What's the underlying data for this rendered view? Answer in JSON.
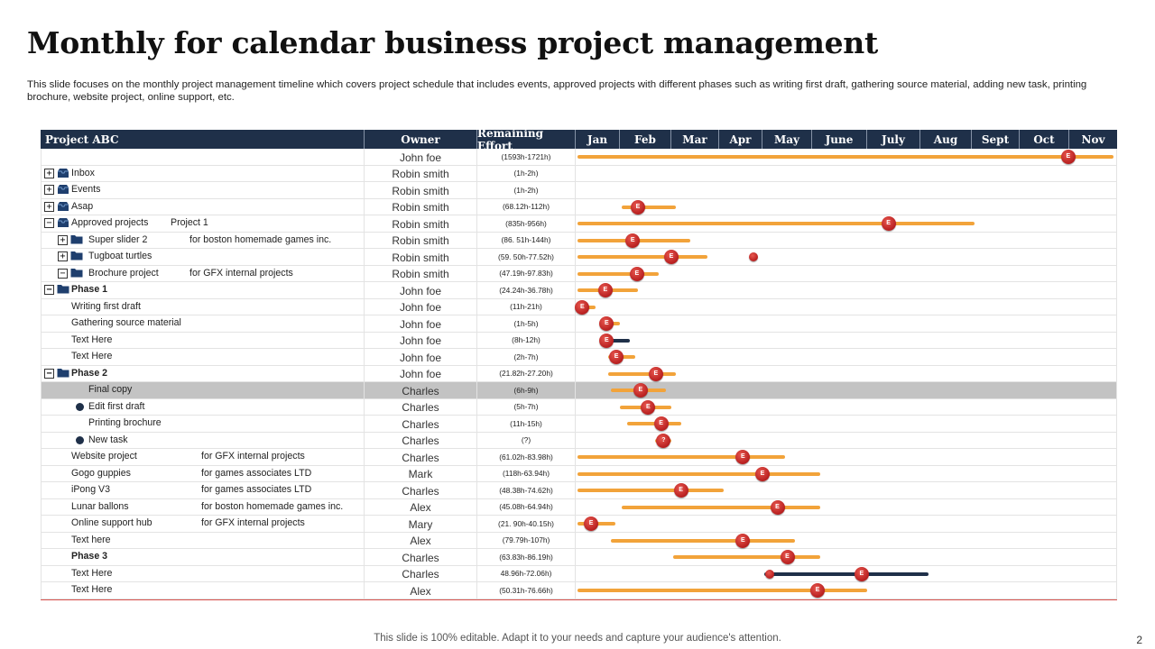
{
  "title": "Monthly for calendar business project management",
  "subtitle": "This slide focuses on the monthly project management timeline which covers project schedule that includes events, approved projects with different phases such as writing first draft, gathering source material, adding new task, printing brochure, website project, online support, etc.",
  "table": {
    "headers": {
      "project": "Project ABC",
      "owner": "Owner",
      "effort": "Remaining Effort"
    },
    "months": [
      "Jan",
      "Feb",
      "Mar",
      "Apr",
      "May",
      "June",
      "July",
      "Aug",
      "Sept",
      "Oct",
      "Nov"
    ],
    "rows": [
      {
        "name": "",
        "note": "",
        "owner": "John foe",
        "effort": "(1593h-1721h)",
        "bold": false,
        "bar": [
          0.0,
          11.0
        ],
        "marker": 9.98,
        "marker_label": "E"
      },
      {
        "name": "Inbox",
        "note": "",
        "owner": "Robin smith",
        "effort": "(1h-2h)",
        "bold": false,
        "expander": "+",
        "icon": "inbox"
      },
      {
        "name": "Events",
        "note": "",
        "owner": "Robin smith",
        "effort": "(1h-2h)",
        "bold": false,
        "expander": "+",
        "icon": "inbox"
      },
      {
        "name": "Asap",
        "note": "",
        "owner": "Robin smith",
        "effort": "(68.12h-112h)",
        "bold": false,
        "expander": "+",
        "icon": "inbox",
        "bar": [
          1.0,
          2.1
        ],
        "marker": 1.35,
        "marker_label": "E"
      },
      {
        "name": "Approved projects",
        "note": "Project  1",
        "owner": "Robin smith",
        "effort": "(835h-956h)",
        "bold": false,
        "expander": "−",
        "icon": "inbox",
        "bar": [
          0.0,
          8.05
        ],
        "marker": 6.4,
        "marker_label": "E"
      },
      {
        "name": "Super slider 2",
        "note": "for boston homemade  games inc.",
        "owner": "Robin smith",
        "effort": "(86. 51h-144h)",
        "bold": false,
        "expander": "+",
        "icon": "folder",
        "bar": [
          0.0,
          2.4
        ],
        "marker": 1.25,
        "marker_label": "E"
      },
      {
        "name": "Tugboat turtles",
        "note": "",
        "owner": "Robin smith",
        "effort": "(59. 50h-77.52h)",
        "bold": false,
        "expander": "+",
        "icon": "folder",
        "bar": [
          0.0,
          2.75
        ],
        "marker": 2.0,
        "marker_label": "E",
        "extra_dot": 3.8
      },
      {
        "name": "Brochure project",
        "note": "for GFX internal projects",
        "owner": "Robin smith",
        "effort": "(47.19h-97.83h)",
        "bold": false,
        "expander": "−",
        "icon": "folder",
        "bar": [
          0.0,
          1.75
        ],
        "marker": 1.33,
        "marker_label": "E"
      },
      {
        "name": "Phase 1",
        "note": "",
        "owner": "John foe",
        "effort": "(24.24h-36.78h)",
        "bold": true,
        "expander": "−",
        "icon": "folder",
        "bar": [
          0.0,
          1.35
        ],
        "marker": 0.67,
        "marker_label": "E"
      },
      {
        "name": "Writing first draft",
        "note": "",
        "owner": "John foe",
        "effort": "(11h-21h)",
        "bold": false,
        "bar": [
          0.0,
          0.45
        ],
        "marker": 0.15,
        "marker_label": "E"
      },
      {
        "name": "Gathering source material",
        "note": "",
        "owner": "John foe",
        "effort": "(1h-5h)",
        "bold": false,
        "bar": [
          0.55,
          1.0
        ],
        "marker": 0.7,
        "marker_label": "E"
      },
      {
        "name": "Text Here",
        "note": "",
        "owner": "John foe",
        "effort": "(8h-12h)",
        "bold": false,
        "bar": [
          0.5,
          1.2
        ],
        "bar_dark": true,
        "marker": 0.7,
        "marker_label": "E"
      },
      {
        "name": "Text Here",
        "note": "",
        "owner": "John foe",
        "effort": "(2h-7h)",
        "bold": false,
        "bar": [
          0.7,
          1.3
        ],
        "marker": 0.92,
        "marker_label": "E"
      },
      {
        "name": "Phase 2",
        "note": "",
        "owner": "John foe",
        "effort": "(21.82h-27.20h)",
        "bold": true,
        "expander": "−",
        "icon": "folder",
        "bar": [
          0.7,
          2.1
        ],
        "marker": 1.7,
        "marker_label": "E"
      },
      {
        "name": "Final copy",
        "note": "",
        "owner": "Charles",
        "effort": "(6h-9h)",
        "bold": false,
        "selected": true,
        "indent": 2,
        "bar": [
          0.75,
          1.9
        ],
        "marker": 1.4,
        "marker_label": "E"
      },
      {
        "name": "Edit  first draft",
        "note": "",
        "owner": "Charles",
        "effort": "(5h-7h)",
        "bold": false,
        "indent": 2,
        "dot": true,
        "bar": [
          0.95,
          2.0
        ],
        "marker": 1.55,
        "marker_label": "E"
      },
      {
        "name": "Printing brochure",
        "note": "",
        "owner": "Charles",
        "effort": "(11h-15h)",
        "bold": false,
        "indent": 2,
        "bar": [
          1.1,
          2.2
        ],
        "marker": 1.8,
        "marker_label": "E"
      },
      {
        "name": "New task",
        "note": "",
        "owner": "Charles",
        "effort": "(?)",
        "bold": false,
        "indent": 2,
        "dot": true,
        "bar": [
          1.65,
          2.0
        ],
        "marker": 1.85,
        "marker_label": "?"
      },
      {
        "name": "Website project",
        "note": "for GFX internal projects",
        "owner": "Charles",
        "effort": "(61.02h-83.98h)",
        "bold": false,
        "bar": [
          0.0,
          4.45
        ],
        "marker": 3.55,
        "marker_label": "E"
      },
      {
        "name": "Gogo guppies",
        "note": "for games associates LTD",
        "owner": "Mark",
        "effort": "(118h-63.94h)",
        "bold": false,
        "bar": [
          0.0,
          5.15
        ],
        "marker": 4.0,
        "marker_label": "E"
      },
      {
        "name": "iPong  V3",
        "note": "for games associates LTD",
        "owner": "Charles",
        "effort": "(48.38h-74.62h)",
        "bold": false,
        "bar": [
          0.0,
          3.1
        ],
        "marker": 2.2,
        "marker_label": "E"
      },
      {
        "name": "Lunar ballons",
        "note": "for boston homemade  games inc.",
        "owner": "Alex",
        "effort": "(45.08h-64.94h)",
        "bold": false,
        "bar": [
          1.0,
          5.15
        ],
        "marker": 4.3,
        "marker_label": "E"
      },
      {
        "name": "Online support hub",
        "note": "for GFX internal projects",
        "owner": "Mary",
        "effort": "(21. 90h-40.15h)",
        "bold": false,
        "bar": [
          0.0,
          0.9
        ],
        "marker": 0.35,
        "marker_label": "E"
      },
      {
        "name": "Text here",
        "note": "",
        "owner": "Alex",
        "effort": "(79.79h-107h)",
        "bold": false,
        "bar": [
          0.75,
          4.65
        ],
        "marker": 3.55,
        "marker_label": "E"
      },
      {
        "name": "Phase 3",
        "note": "",
        "owner": "Charles",
        "effort": "(63.83h-86.19h)",
        "bold": true,
        "bar": [
          2.0,
          5.15
        ],
        "marker": 4.5,
        "marker_label": "E"
      },
      {
        "name": "Text Here",
        "note": "",
        "owner": "Charles",
        "effort": "48.96h-72.06h)",
        "bold": false,
        "bar": [
          4.0,
          7.15
        ],
        "bar_dark": true,
        "marker": 5.9,
        "marker_label": "E",
        "extra_dot": 4.15
      },
      {
        "name": "Text Here",
        "note": "",
        "owner": "Alex",
        "effort": "(50.31h-76.66h)",
        "bold": false,
        "bar": [
          0.0,
          6.0
        ],
        "marker": 5.1,
        "marker_label": "E"
      }
    ]
  },
  "footer": "This slide is 100% editable. Adapt it to your needs and capture your audience's attention.",
  "page_number": "2",
  "colors": {
    "header_bg": "#1f3049",
    "bar": "#f2a33a",
    "marker": "#c62828",
    "selected_row": "#c3c3c3"
  }
}
